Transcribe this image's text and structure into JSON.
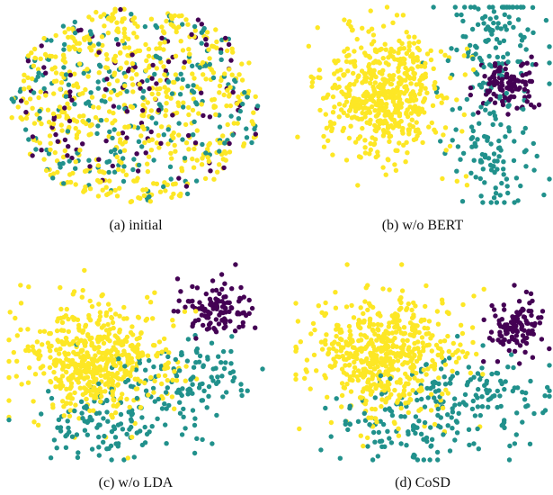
{
  "colors": {
    "class_a": "#440154",
    "class_b": "#21918c",
    "class_c": "#fde725",
    "background": "#ffffff"
  },
  "panels": [
    {
      "caption": "(a)  initial"
    },
    {
      "caption": "(b)  w/o BERT"
    },
    {
      "caption": "(c)  w/o LDA"
    },
    {
      "caption": "(d)  CoSD"
    }
  ],
  "chart_data": [
    {
      "type": "scatter",
      "title": "(a)  initial",
      "xlabel": "",
      "ylabel": "",
      "grid": false,
      "axes": "hidden",
      "xlim": [
        0,
        100
      ],
      "ylim": [
        0,
        100
      ],
      "series": [
        {
          "color": "#fde725",
          "spread": "mixed",
          "approx_count": 560,
          "extent": {
            "x": [
              0,
              100
            ],
            "y": [
              0,
              100
            ]
          }
        },
        {
          "color": "#21918c",
          "spread": "mixed",
          "approx_count": 230,
          "extent": {
            "x": [
              0,
              100
            ],
            "y": [
              0,
              100
            ]
          }
        },
        {
          "color": "#440154",
          "spread": "mixed",
          "approx_count": 110,
          "extent": {
            "x": [
              0,
              100
            ],
            "y": [
              0,
              100
            ]
          }
        }
      ]
    },
    {
      "type": "scatter",
      "title": "(b)  w/o BERT",
      "xlabel": "",
      "ylabel": "",
      "grid": false,
      "axes": "hidden",
      "xlim": [
        0,
        100
      ],
      "ylim": [
        0,
        100
      ],
      "series": [
        {
          "color": "#fde725",
          "spread": "cluster",
          "approx_count": 560,
          "center": [
            35,
            55
          ],
          "extent": {
            "x": [
              5,
              70
            ],
            "y": [
              5,
              95
            ]
          }
        },
        {
          "color": "#21918c",
          "spread": "clusters",
          "approx_count": 230,
          "centers": [
            [
              80,
              85
            ],
            [
              78,
              28
            ]
          ],
          "extent": {
            "x": [
              50,
              100
            ],
            "y": [
              0,
              100
            ]
          }
        },
        {
          "color": "#440154",
          "spread": "cluster",
          "approx_count": 110,
          "center": [
            83,
            60
          ],
          "extent": {
            "x": [
              68,
              98
            ],
            "y": [
              45,
              75
            ]
          }
        }
      ]
    },
    {
      "type": "scatter",
      "title": "(c)  w/o LDA",
      "xlabel": "",
      "ylabel": "",
      "grid": false,
      "axes": "hidden",
      "xlim": [
        0,
        100
      ],
      "ylim": [
        0,
        100
      ],
      "series": [
        {
          "color": "#fde725",
          "spread": "cluster",
          "approx_count": 560,
          "center": [
            35,
            50
          ],
          "extent": {
            "x": [
              0,
              75
            ],
            "y": [
              15,
              90
            ]
          }
        },
        {
          "color": "#21918c",
          "spread": "clusters",
          "approx_count": 230,
          "centers": [
            [
              40,
              20
            ],
            [
              70,
              40
            ]
          ],
          "extent": {
            "x": [
              20,
              90
            ],
            "y": [
              0,
              60
            ]
          }
        },
        {
          "color": "#440154",
          "spread": "cluster",
          "approx_count": 110,
          "center": [
            82,
            78
          ],
          "extent": {
            "x": [
              65,
              100
            ],
            "y": [
              60,
              95
            ]
          }
        }
      ]
    },
    {
      "type": "scatter",
      "title": "(d)  CoSD",
      "xlabel": "",
      "ylabel": "",
      "grid": false,
      "axes": "hidden",
      "xlim": [
        0,
        100
      ],
      "ylim": [
        0,
        100
      ],
      "series": [
        {
          "color": "#fde725",
          "spread": "cluster",
          "approx_count": 560,
          "center": [
            35,
            55
          ],
          "extent": {
            "x": [
              0,
              75
            ],
            "y": [
              10,
              95
            ]
          }
        },
        {
          "color": "#21918c",
          "spread": "clusters",
          "approx_count": 230,
          "centers": [
            [
              45,
              18
            ],
            [
              72,
              35
            ]
          ],
          "extent": {
            "x": [
              10,
              95
            ],
            "y": [
              0,
              60
            ]
          }
        },
        {
          "color": "#440154",
          "spread": "cluster",
          "approx_count": 110,
          "center": [
            87,
            68
          ],
          "extent": {
            "x": [
              72,
              100
            ],
            "y": [
              50,
              90
            ]
          }
        }
      ]
    }
  ]
}
